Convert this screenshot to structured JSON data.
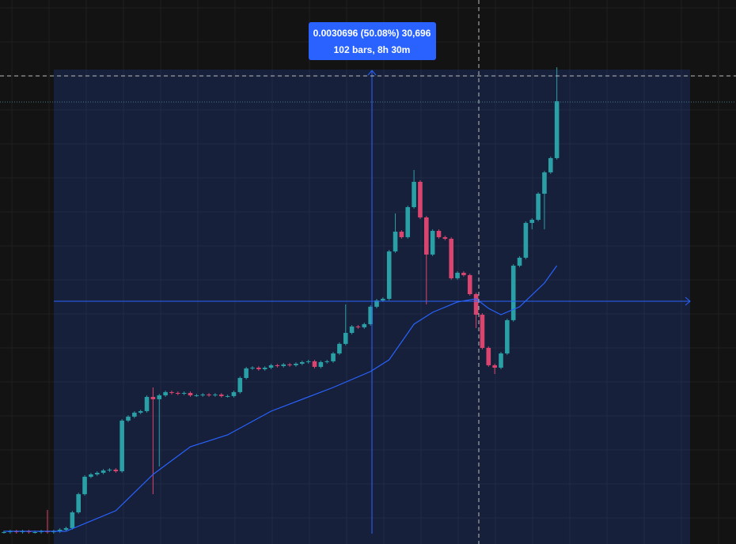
{
  "chart_data": {
    "type": "candlestick",
    "measure": {
      "line1": "0.0030696 (50.08%) 30,696",
      "line2": "102 bars, 8h 30m"
    },
    "up_color": "#2a9fa6",
    "down_color": "#d9456f",
    "ma_color": "#2962ff",
    "ylim": [
      0.002822,
      0.010233
    ],
    "open": [
      0.002984,
      0.002984,
      0.002995,
      0.002984,
      0.002995,
      0.002984,
      0.002984,
      0.002995,
      0.002984,
      0.002995,
      0.003016,
      0.003038,
      0.003253,
      0.003501,
      0.003738,
      0.00377,
      0.003792,
      0.003824,
      0.003835,
      0.003813,
      0.004503,
      0.004557,
      0.004611,
      0.004632,
      0.004826,
      0.004794,
      0.004847,
      0.004891,
      0.00488,
      0.004869,
      0.00488,
      0.004847,
      0.004847,
      0.004858,
      0.004847,
      0.004858,
      0.004837,
      0.004837,
      0.004891,
      0.005084,
      0.005214,
      0.005224,
      0.005203,
      0.005224,
      0.005257,
      0.005246,
      0.005268,
      0.005257,
      0.005278,
      0.0053,
      0.005311,
      0.005235,
      0.0053,
      0.005311,
      0.005418,
      0.005548,
      0.005698,
      0.005785,
      0.005774,
      0.005817,
      0.006054,
      0.00614,
      0.006162,
      0.006808,
      0.007077,
      0.007002,
      0.007411,
      0.007756,
      0.007271,
      0.006765,
      0.007088,
      0.007002,
      0.00698,
      0.006442,
      0.006517,
      0.006485,
      0.006226,
      0.005946,
      0.005494,
      0.005257,
      0.005224,
      0.005418,
      0.005871,
      0.006614,
      0.006722,
      0.007196,
      0.007239,
      0.007594,
      0.007885,
      0.008079
    ],
    "high": [
      0.003004,
      0.003015,
      0.003015,
      0.003015,
      0.003015,
      0.003004,
      0.003015,
      0.003286,
      0.003015,
      0.003036,
      0.003058,
      0.003273,
      0.003521,
      0.003758,
      0.00379,
      0.003812,
      0.003844,
      0.003855,
      0.003855,
      0.004523,
      0.004577,
      0.004631,
      0.004652,
      0.004846,
      0.004955,
      0.004867,
      0.004911,
      0.004911,
      0.0049,
      0.0049,
      0.0049,
      0.004867,
      0.004878,
      0.004878,
      0.004878,
      0.004878,
      0.004857,
      0.004911,
      0.005104,
      0.005234,
      0.005244,
      0.005244,
      0.005244,
      0.005277,
      0.005277,
      0.005288,
      0.005288,
      0.005298,
      0.00532,
      0.005331,
      0.005331,
      0.00532,
      0.005331,
      0.005438,
      0.005568,
      0.006086,
      0.005805,
      0.005805,
      0.005837,
      0.006074,
      0.00616,
      0.006182,
      0.006828,
      0.007325,
      0.007097,
      0.007431,
      0.007917,
      0.007776,
      0.007291,
      0.007108,
      0.007108,
      0.007022,
      0.007,
      0.006537,
      0.006537,
      0.006505,
      0.006246,
      0.005966,
      0.005514,
      0.005277,
      0.005438,
      0.005891,
      0.006634,
      0.006742,
      0.007216,
      0.007259,
      0.007614,
      0.007905,
      0.008099,
      0.009317
    ],
    "low": [
      0.002964,
      0.002964,
      0.002964,
      0.002964,
      0.002964,
      0.002964,
      0.002964,
      0.002964,
      0.002964,
      0.002975,
      0.002996,
      0.003018,
      0.003233,
      0.003481,
      0.003718,
      0.00375,
      0.003772,
      0.003804,
      0.003793,
      0.003793,
      0.004483,
      0.004537,
      0.004591,
      0.004612,
      0.003501,
      0.003878,
      0.004827,
      0.00486,
      0.004849,
      0.004849,
      0.004827,
      0.004827,
      0.004827,
      0.004827,
      0.004827,
      0.004817,
      0.004817,
      0.004817,
      0.004871,
      0.005064,
      0.005194,
      0.005183,
      0.005183,
      0.005204,
      0.005226,
      0.005226,
      0.005237,
      0.005237,
      0.005258,
      0.00528,
      0.005215,
      0.005215,
      0.00528,
      0.005291,
      0.005398,
      0.005528,
      0.005678,
      0.005754,
      0.005754,
      0.005797,
      0.006034,
      0.00612,
      0.006142,
      0.006788,
      0.006982,
      0.006982,
      0.007391,
      0.007251,
      0.006086,
      0.006745,
      0.006982,
      0.00696,
      0.006422,
      0.006422,
      0.006465,
      0.006206,
      0.005763,
      0.005474,
      0.005237,
      0.005138,
      0.005204,
      0.005398,
      0.005851,
      0.006594,
      0.006702,
      0.007109,
      0.007219,
      0.007109,
      0.007865,
      0.008059
    ],
    "close": [
      0.002984,
      0.002995,
      0.002984,
      0.002995,
      0.002984,
      0.002984,
      0.002995,
      0.002984,
      0.002995,
      0.003016,
      0.003038,
      0.003253,
      0.003501,
      0.003738,
      0.00377,
      0.003792,
      0.003824,
      0.003835,
      0.003813,
      0.004503,
      0.004557,
      0.004611,
      0.004632,
      0.004826,
      0.004794,
      0.004847,
      0.004891,
      0.00488,
      0.004869,
      0.00488,
      0.004847,
      0.004847,
      0.004858,
      0.004847,
      0.004858,
      0.004837,
      0.004837,
      0.004891,
      0.005084,
      0.005214,
      0.005224,
      0.005203,
      0.005224,
      0.005257,
      0.005246,
      0.005268,
      0.005257,
      0.005278,
      0.0053,
      0.005311,
      0.005235,
      0.0053,
      0.005311,
      0.005418,
      0.005548,
      0.005698,
      0.005785,
      0.005774,
      0.005817,
      0.006054,
      0.00614,
      0.006162,
      0.006808,
      0.007077,
      0.007002,
      0.007411,
      0.007756,
      0.007271,
      0.006765,
      0.007088,
      0.007002,
      0.00698,
      0.006442,
      0.006517,
      0.006485,
      0.006226,
      0.005946,
      0.005494,
      0.005257,
      0.005224,
      0.005418,
      0.005871,
      0.006614,
      0.006722,
      0.007196,
      0.007239,
      0.007594,
      0.007885,
      0.008079,
      0.008854
    ],
    "ma": {
      "x": [
        0,
        10,
        18,
        24,
        30,
        36,
        43,
        53,
        59,
        62,
        66,
        69,
        73,
        76,
        78,
        80,
        83,
        87,
        89
      ],
      "values": [
        0.002995,
        0.002995,
        0.003275,
        0.00377,
        0.004147,
        0.004309,
        0.004632,
        0.004955,
        0.005171,
        0.005332,
        0.005817,
        0.005978,
        0.006119,
        0.006162,
        0.006032,
        0.005946,
        0.006054,
        0.006377,
        0.006614
      ]
    }
  }
}
